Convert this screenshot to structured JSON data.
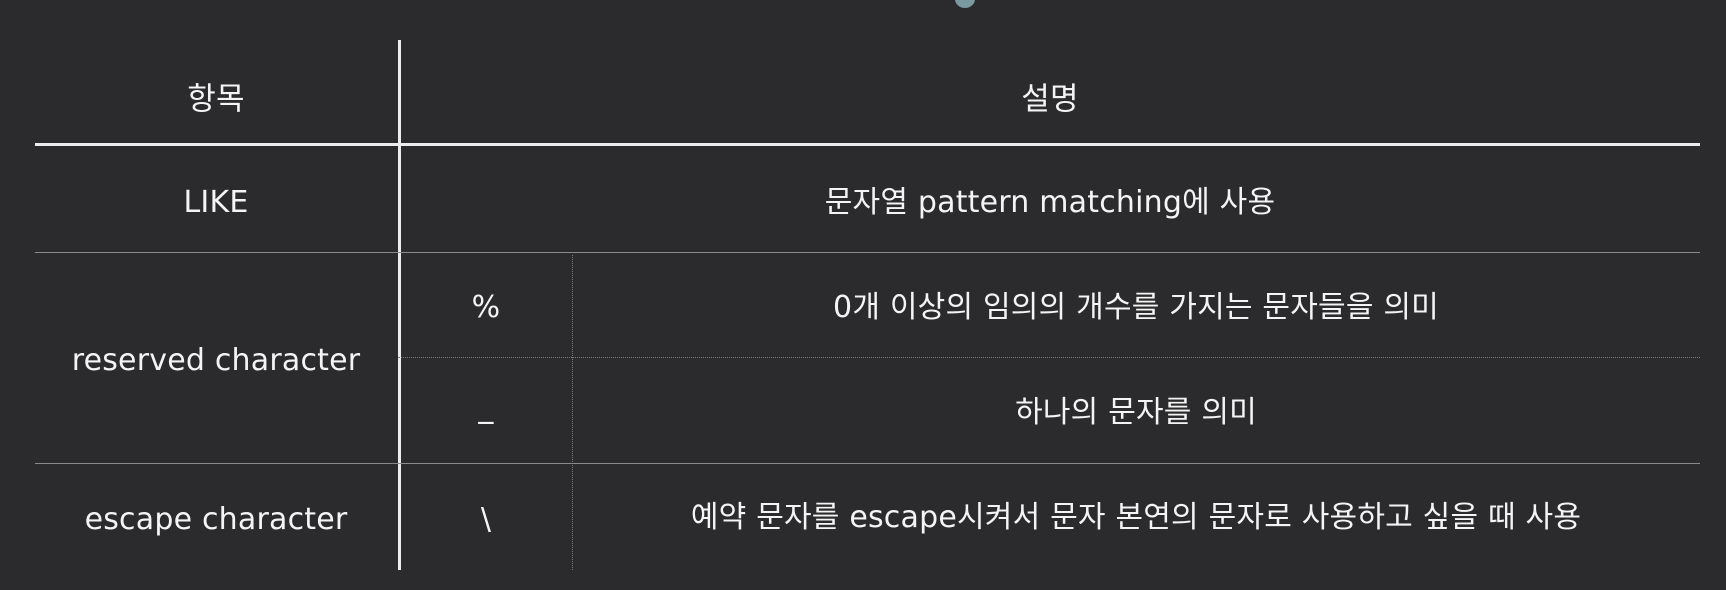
{
  "table": {
    "header": {
      "item": "항목",
      "description": "설명"
    },
    "rows": [
      {
        "item": "LIKE",
        "description": "문자열 pattern matching에 사용"
      },
      {
        "item": "reserved character",
        "subrows": [
          {
            "symbol": "%",
            "description": "0개 이상의 임의의 개수를 가지는 문자들을 의미"
          },
          {
            "symbol": "_",
            "description": "하나의 문자를 의미"
          }
        ]
      },
      {
        "item": "escape character",
        "symbol": "\\",
        "description": "예약 문자를 escape시켜서 문자 본연의 문자로 사용하고 싶을 때 사용"
      }
    ]
  }
}
